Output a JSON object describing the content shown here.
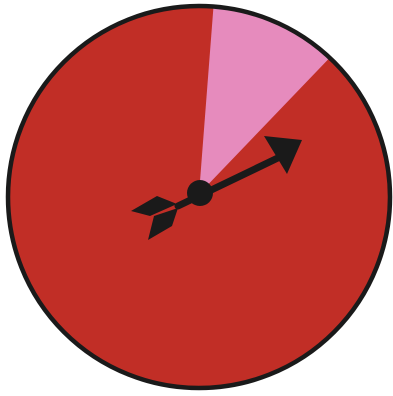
{
  "spinner": {
    "colors": {
      "main_sector": "#c12e26",
      "highlight_sector": "#e68bbd",
      "outline": "#1a1a1a",
      "arrow": "#1a1a1a",
      "background": "#ffffff"
    },
    "highlight_fraction": 0.111,
    "arrow_icon": "arrow-pointer-icon"
  }
}
